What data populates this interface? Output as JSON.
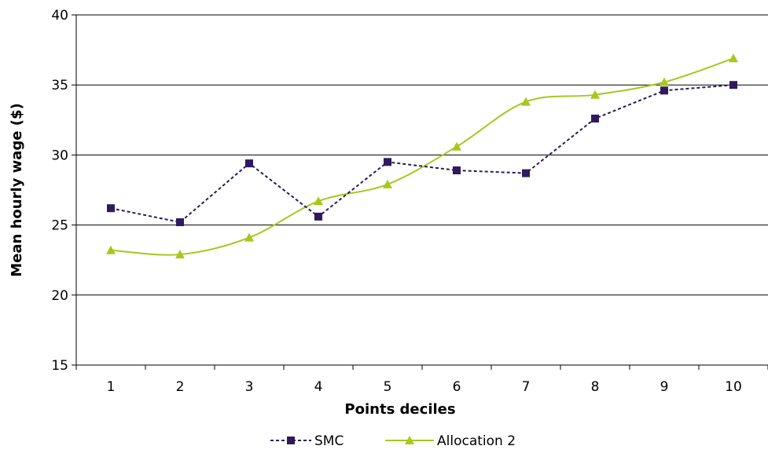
{
  "chart_data": {
    "type": "line",
    "title": "",
    "xlabel": "Points deciles",
    "ylabel": "Mean hourly wage ($)",
    "categories": [
      "1",
      "2",
      "3",
      "4",
      "5",
      "6",
      "7",
      "8",
      "9",
      "10"
    ],
    "ylim": [
      15,
      40
    ],
    "yticks": [
      "15",
      "20",
      "25",
      "30",
      "35",
      "40"
    ],
    "grid": "horizontal",
    "legend_position": "bottom",
    "series": [
      {
        "name": "SMC",
        "values": [
          26.2,
          25.2,
          29.4,
          25.6,
          29.5,
          28.9,
          28.7,
          32.6,
          34.6,
          35.0
        ],
        "color": "#2e1a5c",
        "marker": "square",
        "dash": "dashed"
      },
      {
        "name": "Allocation 2",
        "values": [
          23.2,
          22.9,
          24.1,
          26.7,
          27.9,
          30.6,
          33.8,
          34.3,
          35.2,
          36.9
        ],
        "color": "#a6c81e",
        "marker": "triangle",
        "dash": "solid"
      }
    ]
  }
}
